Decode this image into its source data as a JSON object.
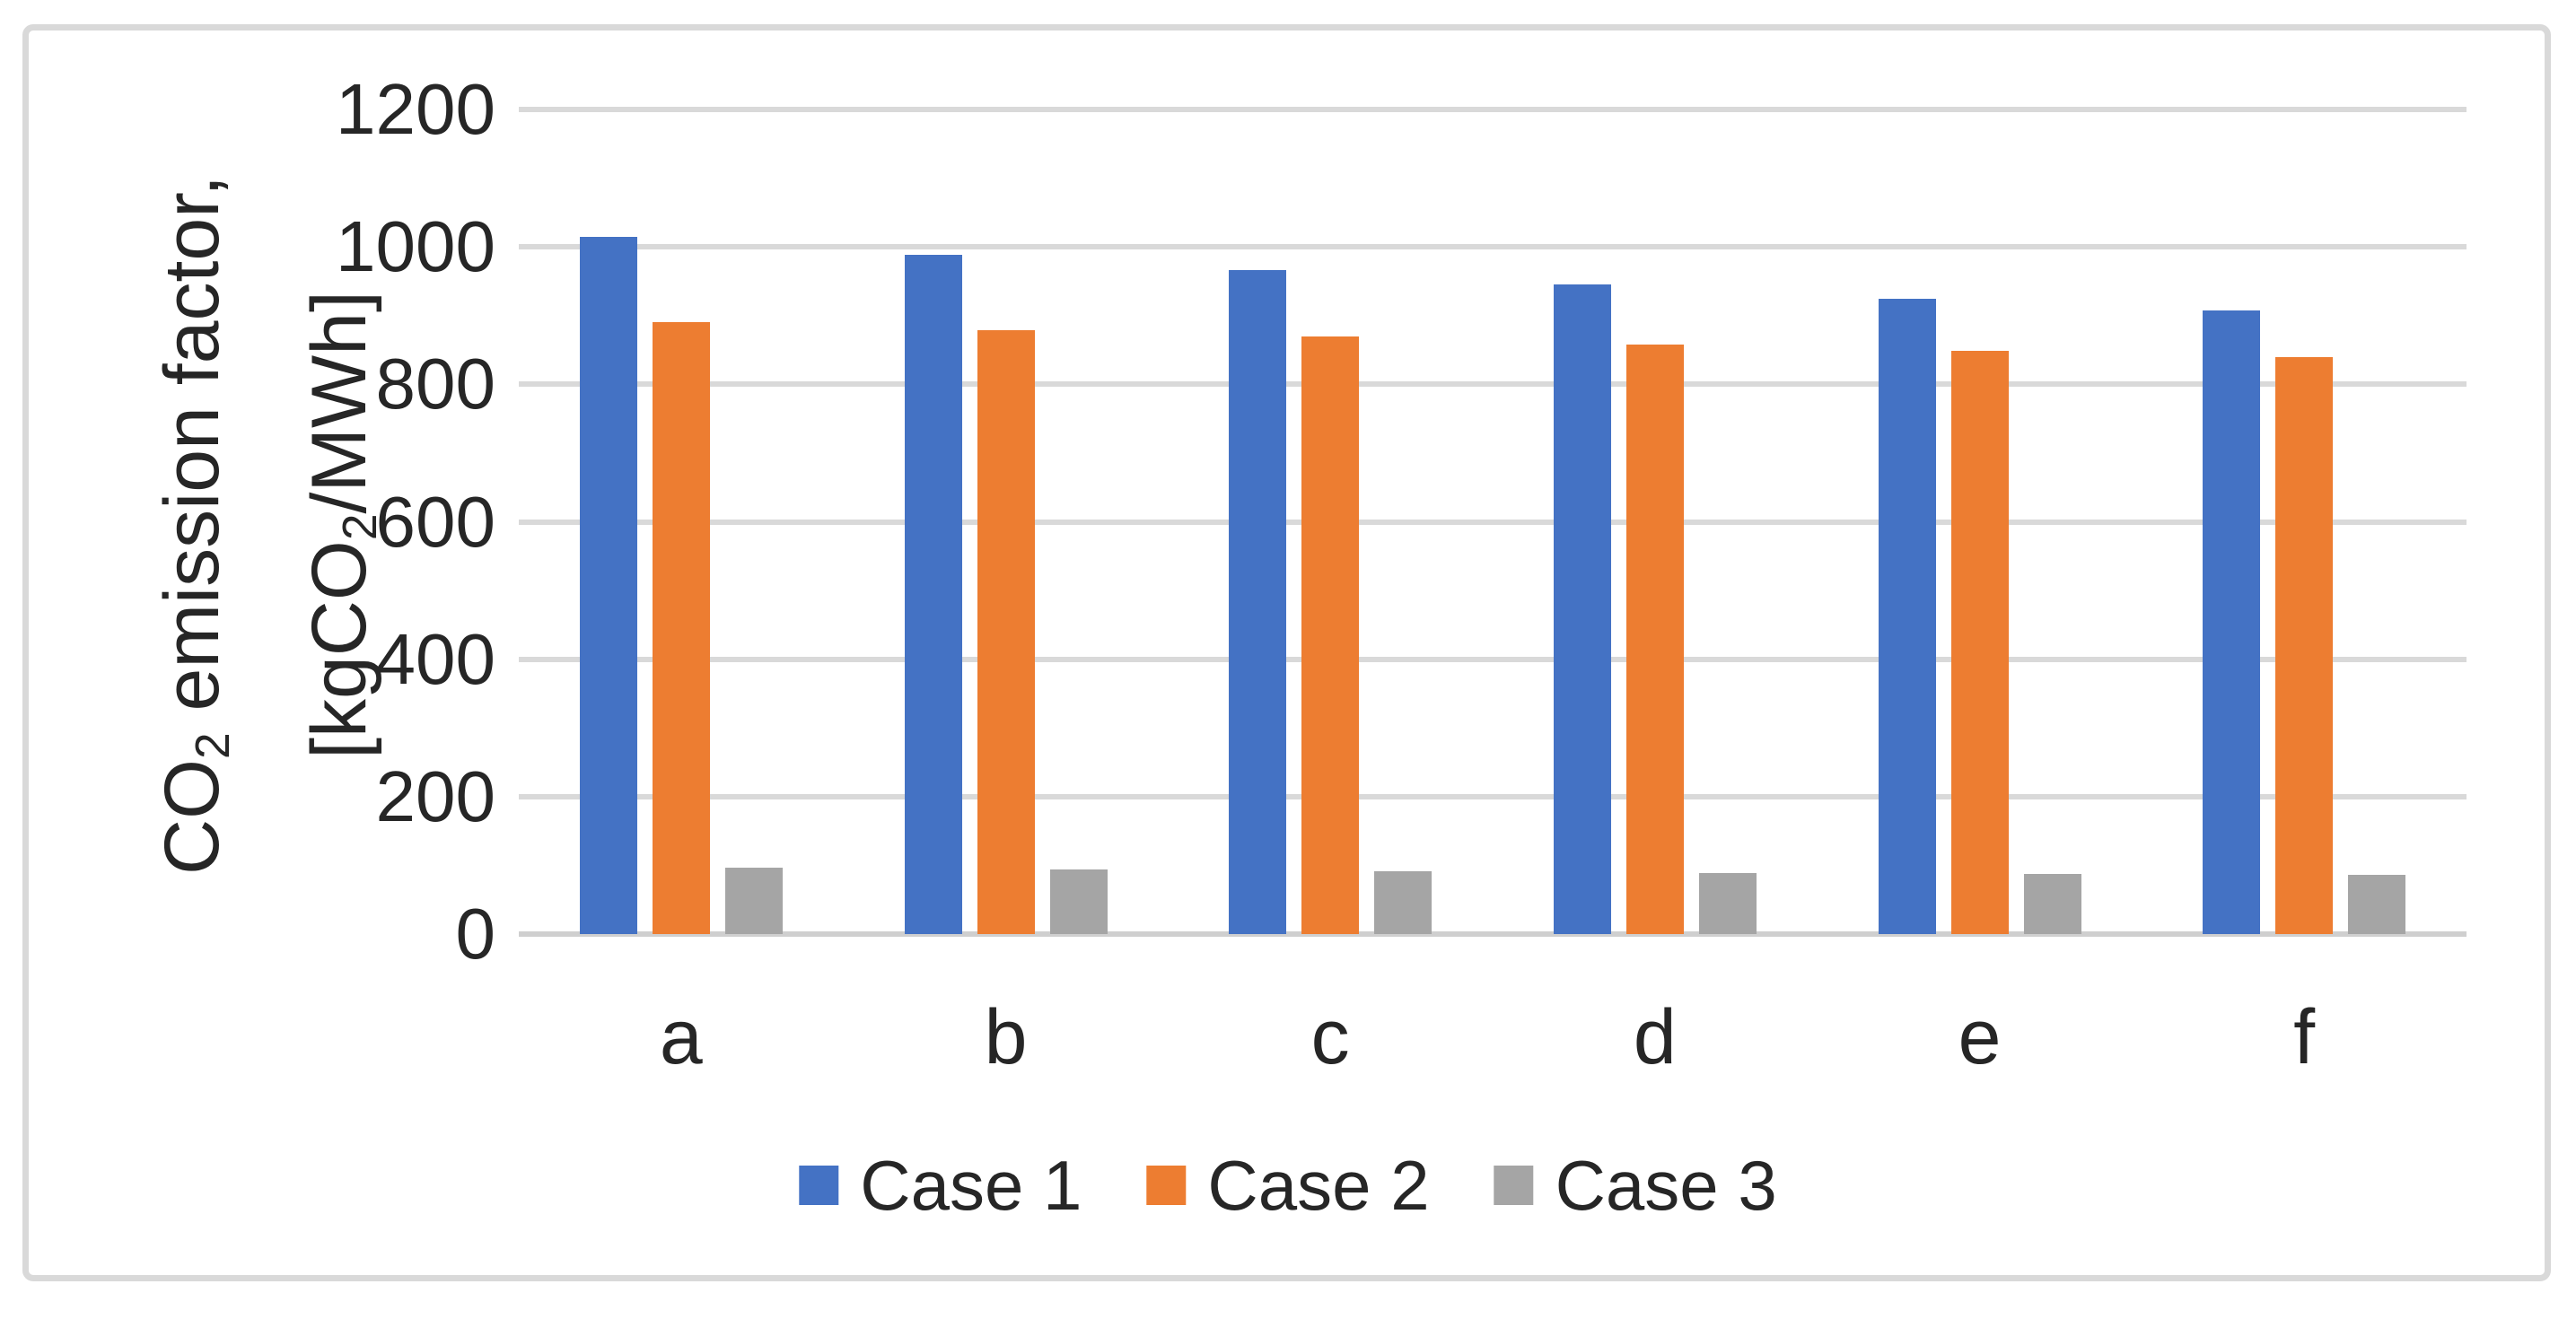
{
  "chart_data": {
    "type": "bar",
    "title": "",
    "categories": [
      "a",
      "b",
      "c",
      "d",
      "e",
      "f"
    ],
    "series": [
      {
        "name": "Case 1",
        "color": "#4472C4",
        "values": [
          1015,
          989,
          966,
          945,
          924,
          908
        ]
      },
      {
        "name": "Case 2",
        "color": "#ED7D31",
        "values": [
          891,
          879,
          869,
          858,
          849,
          840
        ]
      },
      {
        "name": "Case 3",
        "color": "#A5A5A5",
        "values": [
          96,
          94,
          91,
          89,
          88,
          86
        ]
      }
    ],
    "ylabel_lines": [
      {
        "pre": "CO",
        "sub": "2",
        "post": " emission factor,"
      },
      {
        "pre": "[kgCO",
        "sub": "2",
        "post": "/MWh]"
      }
    ],
    "xlabel": "",
    "ylim": [
      0,
      1200
    ],
    "ytick_step": 200,
    "y_ticks": [
      1200,
      1000,
      800,
      600,
      400,
      200,
      0
    ],
    "grid": true,
    "legend_position": "bottom",
    "legend": [
      "Case 1",
      "Case 2",
      "Case 3"
    ],
    "colors": {
      "grid": "#D9D9D9",
      "axis_line": "#CFCFCF",
      "text": "#262626",
      "frame": "#D9D9D9",
      "background": "#FFFFFF"
    }
  }
}
